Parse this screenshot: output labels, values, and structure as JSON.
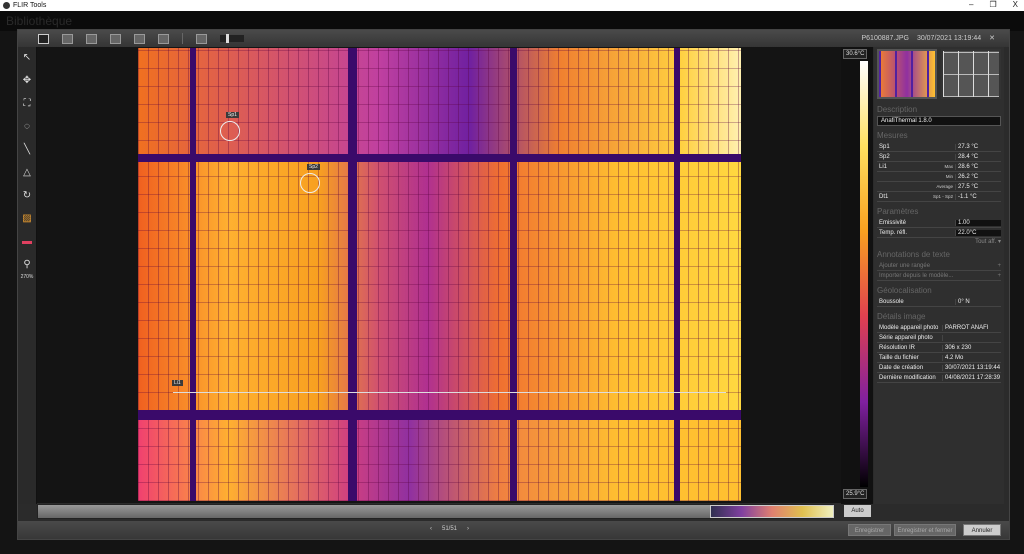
{
  "window": {
    "title": "FLIR Tools",
    "minimize": "–",
    "restore": "❐",
    "close": "X"
  },
  "background_app": {
    "title": "Bibliothèque"
  },
  "toolbar": {
    "filename": "P6100887.JPG",
    "datetime": "30/07/2021 13:19:44",
    "close": "✕"
  },
  "tools": {
    "items": [
      "↖",
      "✥",
      "⛶",
      "◌",
      "╲",
      "△",
      "↻",
      "▨",
      "▬",
      "⚲"
    ],
    "zoom_label": "270%"
  },
  "image": {
    "spots": [
      "Sp1",
      "Sp2"
    ],
    "line": "Li1"
  },
  "scale": {
    "max": "30.6°C",
    "min": "25.9°C"
  },
  "panel": {
    "description_title": "Description",
    "description": "AnafiThermal 1.8.0",
    "mesures_title": "Mesures",
    "mesures": [
      {
        "name": "Sp1",
        "meta": "",
        "value": "27.3 °C"
      },
      {
        "name": "Sp2",
        "meta": "",
        "value": "28.4 °C"
      },
      {
        "name": "Li1",
        "meta": "Max",
        "value": "28.6 °C"
      },
      {
        "name": "",
        "meta": "Min",
        "value": "26.2 °C"
      },
      {
        "name": "",
        "meta": "Average",
        "value": "27.5 °C"
      },
      {
        "name": "Dt1",
        "meta": "Sp1 - Sp2",
        "value": "-1.1 °C"
      }
    ],
    "params_title": "Paramètres",
    "params": [
      {
        "name": "Emissivité",
        "value": "1.00"
      },
      {
        "name": "Temp. réfl.",
        "value": "22.0°C"
      }
    ],
    "show_all": "Tout aff. ▾",
    "annotations_title": "Annotations de texte",
    "annotations": [
      "Ajouter une rangée",
      "Importer depuis le modèle..."
    ],
    "geo_title": "Géolocalisation",
    "geo": [
      {
        "name": "Boussole",
        "value": "0° N"
      }
    ],
    "details_title": "Détails image",
    "details": [
      {
        "name": "Modèle appareil photo",
        "value": "PARROT ANAFI"
      },
      {
        "name": "Série appareil photo",
        "value": ""
      },
      {
        "name": "Résolution IR",
        "value": "306 x 230"
      },
      {
        "name": "Taille du fichier",
        "value": "4.2 Mo"
      },
      {
        "name": "Date de création",
        "value": "30/07/2021 13:19:44"
      },
      {
        "name": "Dernière modification",
        "value": "04/08/2021 17:28:39"
      }
    ]
  },
  "bottom": {
    "auto": "Auto",
    "prev": "‹",
    "page": "51/51",
    "next": "›",
    "save": "Enregistrer",
    "save_close": "Enregistrer et fermer",
    "cancel": "Annuler"
  },
  "colors": {
    "palette": "iron",
    "accent": "#f5a020"
  }
}
